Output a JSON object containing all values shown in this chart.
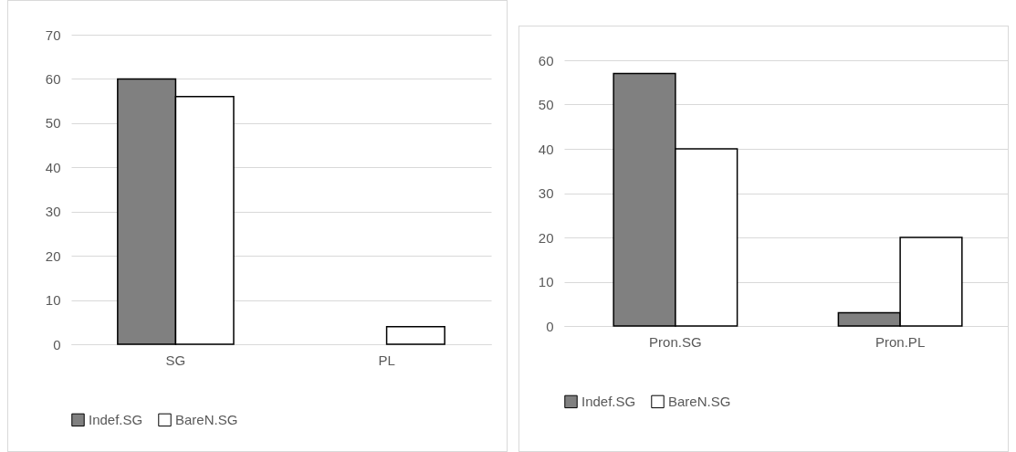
{
  "chart_data": [
    {
      "type": "bar",
      "categories": [
        "SG",
        "PL"
      ],
      "series": [
        {
          "name": "Indef.SG",
          "color": "#808080",
          "values": [
            60,
            0
          ]
        },
        {
          "name": "BareN.SG",
          "color": "#ffffff",
          "values": [
            56,
            4
          ]
        }
      ],
      "ylim": [
        0,
        70
      ],
      "yticks": [
        0,
        10,
        20,
        30,
        40,
        50,
        60,
        70
      ],
      "grid": "y",
      "legend": "bottom"
    },
    {
      "type": "bar",
      "categories": [
        "Pron.SG",
        "Pron.PL"
      ],
      "series": [
        {
          "name": "Indef.SG",
          "color": "#808080",
          "values": [
            57,
            3
          ]
        },
        {
          "name": "BareN.SG",
          "color": "#ffffff",
          "values": [
            40,
            20
          ]
        }
      ],
      "ylim": [
        0,
        60
      ],
      "yticks": [
        0,
        10,
        20,
        30,
        40,
        50,
        60
      ],
      "grid": "y",
      "legend": "bottom"
    }
  ]
}
